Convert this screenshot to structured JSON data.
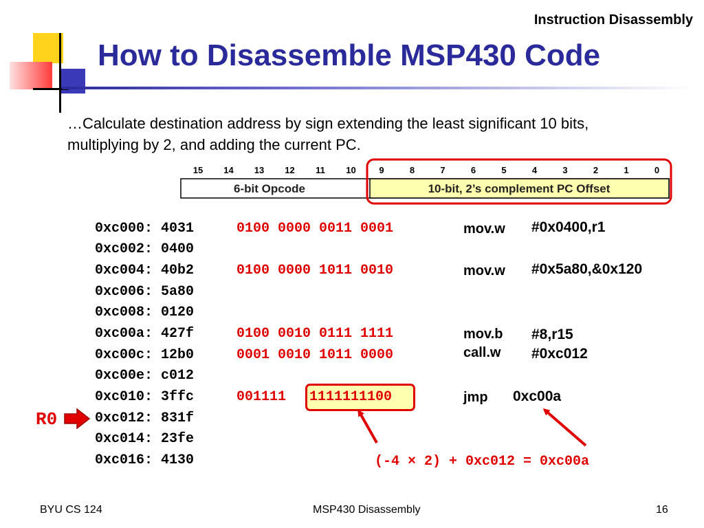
{
  "header": {
    "section": "Instruction Disassembly",
    "title": "How to Disassemble MSP430 Code"
  },
  "bullet": "…Calculate destination address by sign extending the least significant 10 bits, multiplying by 2, and adding the current PC.",
  "bitfield": {
    "bit_numbers": [
      "15",
      "14",
      "13",
      "12",
      "11",
      "10",
      "9",
      "8",
      "7",
      "6",
      "5",
      "4",
      "3",
      "2",
      "1",
      "0"
    ],
    "opcode_label": "6-bit Opcode",
    "offset_label": "10-bit, 2’s complement PC Offset"
  },
  "listing": [
    {
      "addr": "0xc000:",
      "word": "4031",
      "bits": "0100 0000 0011 0001",
      "mnemonic": "mov.w",
      "operands": "#0x0400,r1"
    },
    {
      "addr": "0xc002:",
      "word": "0400"
    },
    {
      "addr": "0xc004:",
      "word": "40b2",
      "bits": "0100 0000 1011 0010",
      "mnemonic": "mov.w",
      "operands": "#0x5a80,&0x120"
    },
    {
      "addr": "0xc006:",
      "word": "5a80"
    },
    {
      "addr": "0xc008:",
      "word": "0120"
    },
    {
      "addr": "0xc00a:",
      "word": "427f",
      "bits": "0100 0010 0111 1111",
      "mnemonic": "mov.b",
      "operands": "#8,r15"
    },
    {
      "addr": "0xc00c:",
      "word": "12b0",
      "bits": "0001 0010 1011 0000",
      "mnemonic": "call.w",
      "operands": "#0xc012"
    },
    {
      "addr": "0xc00e:",
      "word": "c012"
    },
    {
      "addr": "0xc010:",
      "word": "3ffc",
      "bits_prefix": "001111",
      "bits_offset": "1111111100",
      "mnemonic": "jmp",
      "operands": "0xc00a"
    },
    {
      "addr": "0xc012:",
      "word": "831f"
    },
    {
      "addr": "0xc014:",
      "word": "23fe"
    },
    {
      "addr": "0xc016:",
      "word": "4130"
    }
  ],
  "pc_label": "R0",
  "formula": "(-4 × 2) + 0xc012 = 0xc00a",
  "footer": {
    "left": "BYU CS 124",
    "center": "MSP430 Disassembly",
    "page": "16"
  },
  "colors": {
    "title": "#2a2a9a",
    "highlight": "#e00000",
    "offset_fill": "#ffffb0"
  }
}
